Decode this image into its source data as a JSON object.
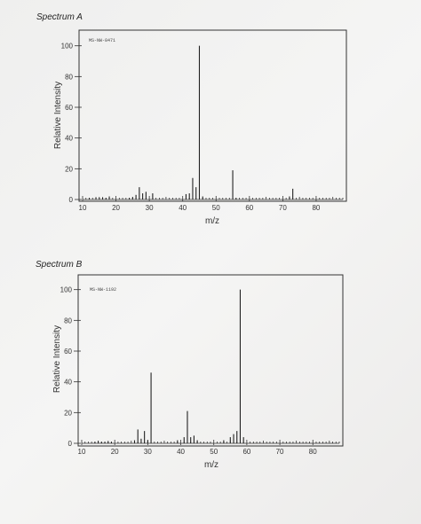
{
  "chart_data": [
    {
      "type": "bar",
      "title": "Spectrum A",
      "code_label": "MS-NW-8471",
      "xlabel": "m/z",
      "ylabel": "Relative Intensity",
      "xlim": [
        10,
        88
      ],
      "ylim": [
        0,
        105
      ],
      "xticks": [
        "10",
        "20",
        "30",
        "40",
        "50",
        "60",
        "70",
        "80"
      ],
      "yticks": [
        "0",
        "20",
        "40",
        "60",
        "80",
        "100"
      ],
      "grid": false,
      "x": [
        12,
        14,
        15,
        16,
        17,
        18,
        24,
        25,
        26,
        27,
        28,
        29,
        31,
        41,
        42,
        43,
        44,
        45,
        46,
        55,
        56,
        72,
        73
      ],
      "values": [
        1,
        1.5,
        1,
        1.5,
        1,
        2,
        1,
        1.5,
        3,
        8,
        4,
        5,
        4,
        3.5,
        4,
        14,
        8,
        100,
        2,
        19,
        1,
        2,
        7
      ]
    },
    {
      "type": "bar",
      "title": "Spectrum B",
      "code_label": "MS-NW-1192",
      "xlabel": "m/z",
      "ylabel": "Relative Intensity",
      "xlim": [
        10,
        88
      ],
      "ylim": [
        0,
        105
      ],
      "xticks": [
        "10",
        "20",
        "30",
        "40",
        "50",
        "60",
        "70",
        "80"
      ],
      "yticks": [
        "0",
        "20",
        "40",
        "60",
        "80",
        "100"
      ],
      "grid": false,
      "x": [
        14,
        15,
        16,
        17,
        18,
        19,
        26,
        27,
        28,
        29,
        30,
        31,
        39,
        41,
        42,
        43,
        44,
        45,
        53,
        55,
        56,
        57,
        58,
        59
      ],
      "values": [
        1,
        1.5,
        1,
        1,
        1.5,
        1,
        2,
        9,
        3,
        8,
        2,
        46,
        2,
        4,
        21,
        4,
        5,
        2,
        2,
        4,
        6,
        8,
        100,
        4
      ]
    }
  ]
}
